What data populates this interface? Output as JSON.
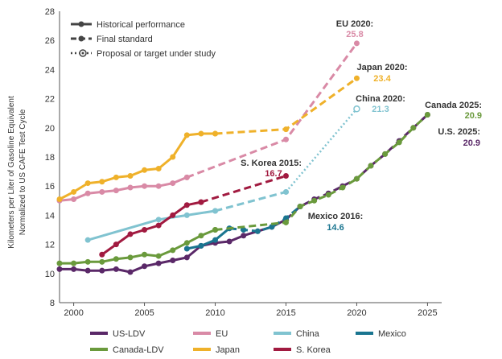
{
  "chart_data": {
    "type": "line",
    "ylabel": [
      "Kilometers per Liter of Gasoline Equivalent",
      "Normalized to US CAFE Test Cycle"
    ],
    "xlim": [
      1999,
      2026
    ],
    "ylim": [
      8,
      28
    ],
    "xticks": [
      2000,
      2005,
      2010,
      2015,
      2020,
      2025
    ],
    "yticks": [
      8,
      10,
      12,
      14,
      16,
      18,
      20,
      22,
      24,
      26,
      28
    ],
    "grid": false,
    "line_key": [
      {
        "label": "Historical performance",
        "style": "solid"
      },
      {
        "label": "Final standard",
        "style": "dashed"
      },
      {
        "label": "Proposal or target under study",
        "style": "dotted"
      }
    ],
    "legend": [
      {
        "name": "US-LDV",
        "color": "#5a2868"
      },
      {
        "name": "EU",
        "color": "#d98aa6"
      },
      {
        "name": "China",
        "color": "#80c3d0"
      },
      {
        "name": "Mexico",
        "color": "#1a7590"
      },
      {
        "name": "Canada-LDV",
        "color": "#6a9a3c"
      },
      {
        "name": "Japan",
        "color": "#efb12a"
      },
      {
        "name": "S. Korea",
        "color": "#a11a40"
      }
    ],
    "series": [
      {
        "name": "US-LDV",
        "color": "#5a2868",
        "segments": [
          {
            "style": "solid",
            "x": [
              1999,
              2000,
              2001,
              2002,
              2003,
              2004,
              2005,
              2006,
              2007,
              2008,
              2009,
              2010,
              2011,
              2012,
              2013,
              2014,
              2015
            ],
            "y": [
              10.3,
              10.3,
              10.2,
              10.2,
              10.3,
              10.1,
              10.5,
              10.7,
              10.9,
              11.1,
              11.9,
              12.1,
              12.2,
              12.6,
              12.9,
              13.2,
              13.7
            ]
          },
          {
            "style": "dashed",
            "x": [
              2015,
              2016,
              2017,
              2018,
              2019,
              2020,
              2021,
              2022,
              2023,
              2024,
              2025
            ],
            "y": [
              13.7,
              14.6,
              15.1,
              15.5,
              16.0,
              16.5,
              17.4,
              18.2,
              19.1,
              20.0,
              20.9
            ]
          }
        ]
      },
      {
        "name": "EU",
        "color": "#d98aa6",
        "segments": [
          {
            "style": "solid",
            "x": [
              1999,
              2000,
              2001,
              2002,
              2003,
              2004,
              2005,
              2006,
              2007,
              2008
            ],
            "y": [
              15.0,
              15.1,
              15.5,
              15.6,
              15.7,
              15.9,
              16.0,
              16.0,
              16.2,
              16.6
            ]
          },
          {
            "style": "dashed",
            "x": [
              2008,
              2015,
              2020
            ],
            "y": [
              16.6,
              19.2,
              25.8
            ]
          }
        ]
      },
      {
        "name": "China",
        "color": "#80c3d0",
        "segments": [
          {
            "style": "solid",
            "x": [
              2001,
              2006,
              2008,
              2010
            ],
            "y": [
              12.3,
              13.7,
              14.0,
              14.3
            ]
          },
          {
            "style": "dashed",
            "x": [
              2010,
              2015
            ],
            "y": [
              14.3,
              15.6
            ]
          },
          {
            "style": "dotted",
            "x": [
              2015,
              2020
            ],
            "y": [
              15.6,
              21.3
            ]
          }
        ]
      },
      {
        "name": "Mexico",
        "color": "#1a7590",
        "segments": [
          {
            "style": "solid",
            "x": [
              2008,
              2009,
              2010,
              2011
            ],
            "y": [
              11.7,
              11.9,
              12.3,
              13.1
            ]
          },
          {
            "style": "dashed",
            "x": [
              2011,
              2012,
              2013,
              2014,
              2015,
              2016
            ],
            "y": [
              13.1,
              13.0,
              12.9,
              13.2,
              13.8,
              14.6
            ]
          }
        ]
      },
      {
        "name": "Canada-LDV",
        "color": "#6a9a3c",
        "segments": [
          {
            "style": "solid",
            "x": [
              1999,
              2000,
              2001,
              2002,
              2003,
              2004,
              2005,
              2006,
              2007,
              2008,
              2009,
              2010
            ],
            "y": [
              10.7,
              10.7,
              10.8,
              10.8,
              11.0,
              11.1,
              11.3,
              11.2,
              11.6,
              12.1,
              12.6,
              13.0
            ]
          },
          {
            "style": "dashed",
            "x": [
              2010,
              2015,
              2016,
              2017,
              2018,
              2019,
              2020,
              2021,
              2022,
              2023,
              2024,
              2025
            ],
            "y": [
              13.0,
              13.5,
              14.6,
              15.0,
              15.4,
              15.9,
              16.5,
              17.4,
              18.2,
              19.0,
              20.0,
              20.9
            ]
          }
        ]
      },
      {
        "name": "Japan",
        "color": "#efb12a",
        "segments": [
          {
            "style": "solid",
            "x": [
              1999,
              2000,
              2001,
              2002,
              2003,
              2004,
              2005,
              2006,
              2007,
              2008,
              2009,
              2010
            ],
            "y": [
              15.1,
              15.6,
              16.2,
              16.3,
              16.6,
              16.7,
              17.1,
              17.2,
              18.0,
              19.5,
              19.6,
              19.6
            ]
          },
          {
            "style": "dashed",
            "x": [
              2010,
              2015,
              2020
            ],
            "y": [
              19.6,
              19.9,
              23.4
            ]
          }
        ]
      },
      {
        "name": "S. Korea",
        "color": "#a11a40",
        "segments": [
          {
            "style": "solid",
            "x": [
              2002,
              2003,
              2004,
              2005,
              2006,
              2007,
              2008,
              2009
            ],
            "y": [
              11.3,
              12.0,
              12.7,
              13.0,
              13.3,
              14.0,
              14.7,
              14.9
            ]
          },
          {
            "style": "dashed",
            "x": [
              2009,
              2015
            ],
            "y": [
              14.9,
              16.7
            ]
          }
        ]
      }
    ],
    "annotations": [
      {
        "name": "EU 2020:",
        "value": "25.8",
        "color": "#d98aa6"
      },
      {
        "name": "Japan 2020:",
        "value": "23.4",
        "color": "#efb12a"
      },
      {
        "name": "China 2020:",
        "value": "21.3",
        "color": "#80c3d0"
      },
      {
        "name": "Canada 2025:",
        "value": "20.9",
        "color": "#6a9a3c"
      },
      {
        "name": "U.S. 2025:",
        "value": "20.9",
        "color": "#5a2868"
      },
      {
        "name": "S. Korea 2015:",
        "value": "16.7",
        "color": "#a11a40"
      },
      {
        "name": "Mexico 2016:",
        "value": "14.6",
        "color": "#1a7590"
      }
    ]
  }
}
